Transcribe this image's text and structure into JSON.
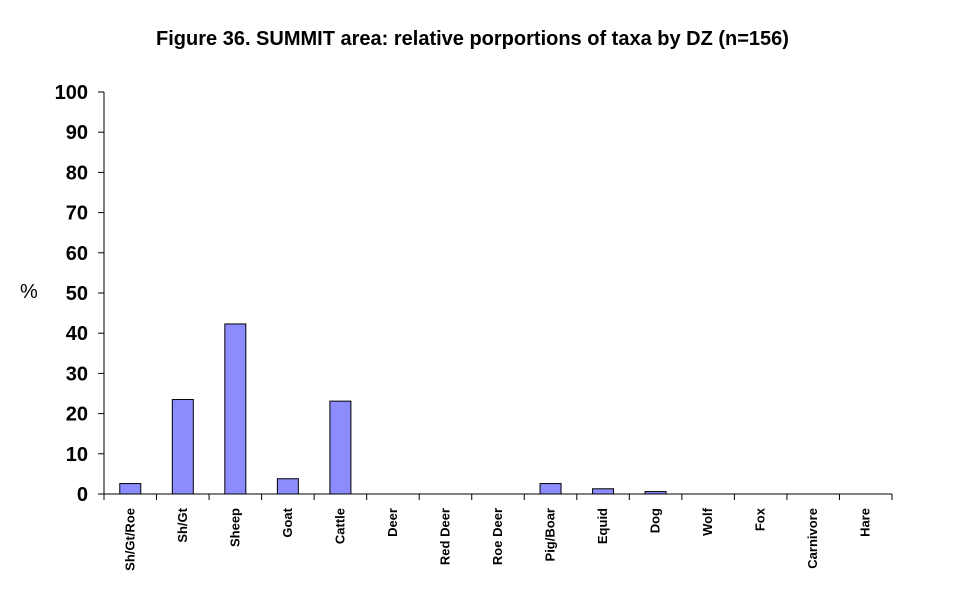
{
  "chart_data": {
    "type": "bar",
    "title": "Figure 36. SUMMIT area: relative porportions of taxa by DZ (n=156)",
    "xlabel": "",
    "ylabel": "%",
    "ylim": [
      0,
      100
    ],
    "yticks": [
      "0",
      "10",
      "20",
      "30",
      "40",
      "50",
      "60",
      "70",
      "80",
      "90",
      "100"
    ],
    "categories": [
      "Sh/Gt/Roe",
      "Sh/Gt",
      "Sheep",
      "Goat",
      "Cattle",
      "Deer",
      "Red Deer",
      "Roe Deer",
      "Pig/Boar",
      "Equid",
      "Dog",
      "Wolf",
      "Fox",
      "Carnivore",
      "Hare"
    ],
    "values": [
      2.6,
      23.5,
      42.3,
      3.8,
      23.1,
      0,
      0,
      0,
      2.6,
      1.3,
      0.6,
      0,
      0,
      0,
      0
    ],
    "grid": false,
    "legend": "none",
    "bar_color": "#8c8cff",
    "bar_stroke": "#000000"
  }
}
